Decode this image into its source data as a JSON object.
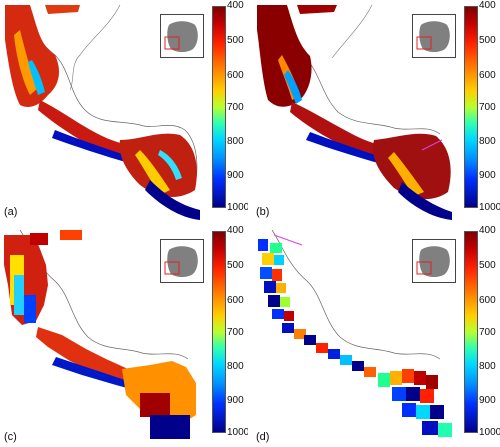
{
  "colorbar": {
    "ticks": [
      "400",
      "500",
      "600",
      "700",
      "800",
      "900",
      "1000"
    ],
    "colors": [
      "#7f0000",
      "#c00000",
      "#ff2000",
      "#ff7a00",
      "#ffd000",
      "#b8ff30",
      "#30ffb0",
      "#00d8ff",
      "#0090ff",
      "#0030ff",
      "#00008a"
    ]
  },
  "panels": [
    {
      "label": "(a)"
    },
    {
      "label": "(b)"
    },
    {
      "label": "(c)"
    },
    {
      "label": "(d)"
    }
  ]
}
